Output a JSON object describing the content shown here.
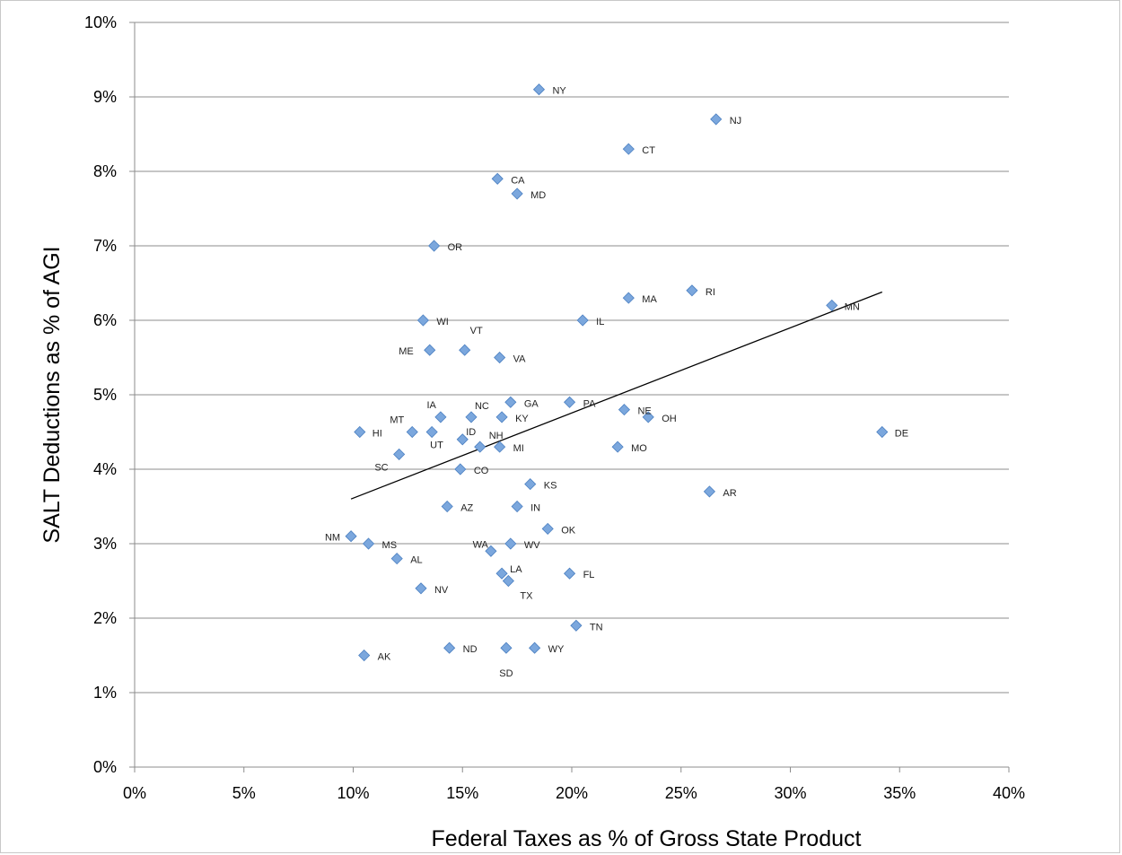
{
  "chart_data": {
    "type": "scatter",
    "xlabel": "Federal Taxes as % of Gross State Product",
    "ylabel": "SALT Deductions as % of AGI",
    "xlim": [
      0,
      40
    ],
    "ylim": [
      0,
      10
    ],
    "x_ticks": [
      0,
      5,
      10,
      15,
      20,
      25,
      30,
      35,
      40
    ],
    "y_ticks": [
      0,
      1,
      2,
      3,
      4,
      5,
      6,
      7,
      8,
      9,
      10
    ],
    "x_tick_labels": [
      "0%",
      "5%",
      "10%",
      "15%",
      "20%",
      "25%",
      "30%",
      "35%",
      "40%"
    ],
    "y_tick_labels": [
      "0%",
      "1%",
      "2%",
      "3%",
      "4%",
      "5%",
      "6%",
      "7%",
      "8%",
      "9%",
      "10%"
    ],
    "grid": "horizontal",
    "marker_color": "#7ba7dd",
    "marker_stroke": "#4a7fc1",
    "trendline": {
      "x": [
        9.9,
        34.2
      ],
      "y": [
        3.6,
        6.38
      ]
    },
    "points": [
      {
        "label": "NY",
        "x": 18.5,
        "y": 9.1
      },
      {
        "label": "NJ",
        "x": 26.6,
        "y": 8.7
      },
      {
        "label": "CT",
        "x": 22.6,
        "y": 8.3
      },
      {
        "label": "CA",
        "x": 16.6,
        "y": 7.9
      },
      {
        "label": "MD",
        "x": 17.5,
        "y": 7.7
      },
      {
        "label": "OR",
        "x": 13.7,
        "y": 7.0
      },
      {
        "label": "RI",
        "x": 25.5,
        "y": 6.4
      },
      {
        "label": "MA",
        "x": 22.6,
        "y": 6.3
      },
      {
        "label": "MN",
        "x": 31.9,
        "y": 6.2
      },
      {
        "label": "WI",
        "x": 13.2,
        "y": 6.0
      },
      {
        "label": "IL",
        "x": 20.5,
        "y": 6.0
      },
      {
        "label": "ME",
        "x": 13.5,
        "y": 5.6
      },
      {
        "label": "VT",
        "x": 15.1,
        "y": 5.6
      },
      {
        "label": "VA",
        "x": 16.7,
        "y": 5.5
      },
      {
        "label": "GA",
        "x": 17.2,
        "y": 4.9
      },
      {
        "label": "PA",
        "x": 19.9,
        "y": 4.9
      },
      {
        "label": "NE",
        "x": 22.4,
        "y": 4.8
      },
      {
        "label": "IA",
        "x": 14.0,
        "y": 4.7
      },
      {
        "label": "NC",
        "x": 15.4,
        "y": 4.7
      },
      {
        "label": "KY",
        "x": 16.8,
        "y": 4.7
      },
      {
        "label": "OH",
        "x": 23.5,
        "y": 4.7
      },
      {
        "label": "HI",
        "x": 10.3,
        "y": 4.5
      },
      {
        "label": "MT",
        "x": 12.7,
        "y": 4.5
      },
      {
        "label": "UT",
        "x": 13.6,
        "y": 4.5
      },
      {
        "label": "DE",
        "x": 34.2,
        "y": 4.5
      },
      {
        "label": "ID",
        "x": 15.0,
        "y": 4.4
      },
      {
        "label": "NH",
        "x": 15.8,
        "y": 4.3
      },
      {
        "label": "MI",
        "x": 16.7,
        "y": 4.3
      },
      {
        "label": "MO",
        "x": 22.1,
        "y": 4.3
      },
      {
        "label": "SC",
        "x": 12.1,
        "y": 4.2
      },
      {
        "label": "CO",
        "x": 14.9,
        "y": 4.0
      },
      {
        "label": "KS",
        "x": 18.1,
        "y": 3.8
      },
      {
        "label": "AR",
        "x": 26.3,
        "y": 3.7
      },
      {
        "label": "AZ",
        "x": 14.3,
        "y": 3.5
      },
      {
        "label": "IN",
        "x": 17.5,
        "y": 3.5
      },
      {
        "label": "OK",
        "x": 18.9,
        "y": 3.2
      },
      {
        "label": "NM",
        "x": 9.9,
        "y": 3.1
      },
      {
        "label": "MS",
        "x": 10.7,
        "y": 3.0
      },
      {
        "label": "WV",
        "x": 17.2,
        "y": 3.0
      },
      {
        "label": "WA",
        "x": 16.3,
        "y": 2.9
      },
      {
        "label": "AL",
        "x": 12.0,
        "y": 2.8
      },
      {
        "label": "LA",
        "x": 16.8,
        "y": 2.6
      },
      {
        "label": "FL",
        "x": 19.9,
        "y": 2.6
      },
      {
        "label": "TX",
        "x": 17.1,
        "y": 2.5
      },
      {
        "label": "NV",
        "x": 13.1,
        "y": 2.4
      },
      {
        "label": "TN",
        "x": 20.2,
        "y": 1.9
      },
      {
        "label": "ND",
        "x": 14.4,
        "y": 1.6
      },
      {
        "label": "SD",
        "x": 17.0,
        "y": 1.6
      },
      {
        "label": "WY",
        "x": 18.3,
        "y": 1.6
      },
      {
        "label": "AK",
        "x": 10.5,
        "y": 1.5
      }
    ]
  }
}
